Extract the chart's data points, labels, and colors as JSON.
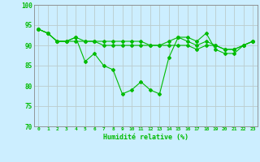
{
  "title": "",
  "xlabel": "Humidité relative (%)",
  "ylabel": "",
  "background_color": "#cceeff",
  "grid_color": "#bbcccc",
  "line_color": "#00bb00",
  "xlim": [
    -0.5,
    23.5
  ],
  "ylim": [
    70,
    100
  ],
  "yticks": [
    70,
    75,
    80,
    85,
    90,
    95,
    100
  ],
  "xticks": [
    0,
    1,
    2,
    3,
    4,
    5,
    6,
    7,
    8,
    9,
    10,
    11,
    12,
    13,
    14,
    15,
    16,
    17,
    18,
    19,
    20,
    21,
    22,
    23
  ],
  "series1": [
    94,
    93,
    91,
    91,
    92,
    86,
    88,
    85,
    84,
    78,
    79,
    81,
    79,
    78,
    87,
    92,
    92,
    91,
    93,
    89,
    88,
    88,
    90,
    91
  ],
  "series2": [
    94,
    93,
    91,
    91,
    92,
    91,
    91,
    90,
    90,
    90,
    90,
    90,
    90,
    90,
    91,
    92,
    91,
    90,
    91,
    90,
    89,
    89,
    90,
    91
  ],
  "series3": [
    94,
    93,
    91,
    91,
    91,
    91,
    91,
    91,
    91,
    91,
    91,
    91,
    90,
    90,
    90,
    90,
    90,
    89,
    90,
    90,
    89,
    89,
    90,
    91
  ]
}
